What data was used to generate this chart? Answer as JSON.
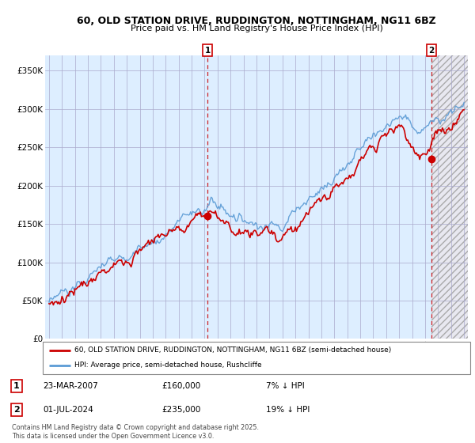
{
  "title": "60, OLD STATION DRIVE, RUDDINGTON, NOTTINGHAM, NG11 6BZ",
  "subtitle": "Price paid vs. HM Land Registry's House Price Index (HPI)",
  "hpi_color": "#5b9bd5",
  "price_color": "#cc0000",
  "sale1_x": 2007.22,
  "sale1_y": 160000,
  "sale2_x": 2024.5,
  "sale2_y": 235000,
  "sale1_label": "1",
  "sale2_label": "2",
  "legend_line1": "60, OLD STATION DRIVE, RUDDINGTON, NOTTINGHAM, NG11 6BZ (semi-detached house)",
  "legend_line2": "HPI: Average price, semi-detached house, Rushcliffe",
  "table_row1": [
    "1",
    "23-MAR-2007",
    "£160,000",
    "7% ↓ HPI"
  ],
  "table_row2": [
    "2",
    "01-JUL-2024",
    "£235,000",
    "19% ↓ HPI"
  ],
  "footnote": "Contains HM Land Registry data © Crown copyright and database right 2025.\nThis data is licensed under the Open Government Licence v3.0.",
  "background_color": "#ffffff",
  "chart_bg_color": "#ddeeff",
  "grid_color": "#aaaacc",
  "vline_color": "#cc0000",
  "hatch_color": "#ccccdd",
  "yticks": [
    0,
    50000,
    100000,
    150000,
    200000,
    250000,
    300000,
    350000
  ],
  "ytick_labels": [
    "£0",
    "£50K",
    "£100K",
    "£150K",
    "£200K",
    "£250K",
    "£300K",
    "£350K"
  ],
  "xmin": 1994.7,
  "xmax": 2027.3,
  "ymin": 0,
  "ymax": 360000
}
